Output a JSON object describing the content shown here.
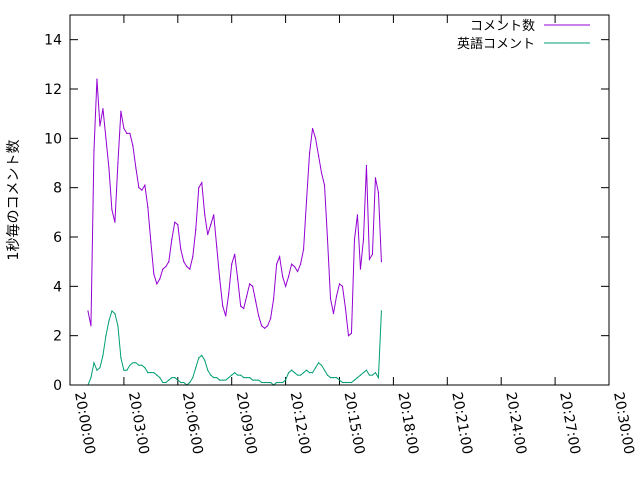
{
  "chart_data": {
    "type": "line",
    "title": "",
    "xlabel": "",
    "ylabel": "1秒毎のコメント数",
    "x_unit": "time (HH:MM:SS)",
    "xlim": [
      "20:00:00",
      "20:30:00"
    ],
    "ylim": [
      0,
      15
    ],
    "grid": false,
    "legend_position": "top-right",
    "x_ticks": [
      "20:00:00",
      "20:03:00",
      "20:06:00",
      "20:09:00",
      "20:12:00",
      "20:15:00",
      "20:18:00",
      "20:21:00",
      "20:24:00",
      "20:27:00",
      "20:30:00"
    ],
    "y_ticks": [
      "0",
      "2",
      "4",
      "6",
      "8",
      "10",
      "12",
      "14"
    ],
    "series": [
      {
        "name": "コメント数",
        "color": "#9400d3",
        "points": [
          [
            "20:01:00",
            3.0
          ],
          [
            "20:01:10",
            2.4
          ],
          [
            "20:01:20",
            9.5
          ],
          [
            "20:01:30",
            12.4
          ],
          [
            "20:01:40",
            10.5
          ],
          [
            "20:01:50",
            11.2
          ],
          [
            "20:02:00",
            10.0
          ],
          [
            "20:02:10",
            8.8
          ],
          [
            "20:02:20",
            7.1
          ],
          [
            "20:02:30",
            6.6
          ],
          [
            "20:02:40",
            9.0
          ],
          [
            "20:02:50",
            11.1
          ],
          [
            "20:03:00",
            10.4
          ],
          [
            "20:03:10",
            10.2
          ],
          [
            "20:03:20",
            10.2
          ],
          [
            "20:03:30",
            9.7
          ],
          [
            "20:03:40",
            8.8
          ],
          [
            "20:03:50",
            8.0
          ],
          [
            "20:04:00",
            7.9
          ],
          [
            "20:04:10",
            8.1
          ],
          [
            "20:04:20",
            7.2
          ],
          [
            "20:04:30",
            5.8
          ],
          [
            "20:04:40",
            4.5
          ],
          [
            "20:04:50",
            4.1
          ],
          [
            "20:05:00",
            4.3
          ],
          [
            "20:05:10",
            4.7
          ],
          [
            "20:05:20",
            4.8
          ],
          [
            "20:05:30",
            5.0
          ],
          [
            "20:05:40",
            5.9
          ],
          [
            "20:05:50",
            6.6
          ],
          [
            "20:06:00",
            6.5
          ],
          [
            "20:06:10",
            5.5
          ],
          [
            "20:06:20",
            5.0
          ],
          [
            "20:06:30",
            4.8
          ],
          [
            "20:06:40",
            4.7
          ],
          [
            "20:06:50",
            5.2
          ],
          [
            "20:07:00",
            6.3
          ],
          [
            "20:07:10",
            8.0
          ],
          [
            "20:07:20",
            8.2
          ],
          [
            "20:07:30",
            6.9
          ],
          [
            "20:07:40",
            6.1
          ],
          [
            "20:07:50",
            6.5
          ],
          [
            "20:08:00",
            6.9
          ],
          [
            "20:08:10",
            5.6
          ],
          [
            "20:08:20",
            4.3
          ],
          [
            "20:08:30",
            3.2
          ],
          [
            "20:08:40",
            2.8
          ],
          [
            "20:08:50",
            3.7
          ],
          [
            "20:09:00",
            4.9
          ],
          [
            "20:09:10",
            5.3
          ],
          [
            "20:09:20",
            4.3
          ],
          [
            "20:09:30",
            3.2
          ],
          [
            "20:09:40",
            3.1
          ],
          [
            "20:09:50",
            3.6
          ],
          [
            "20:10:00",
            4.1
          ],
          [
            "20:10:10",
            4.0
          ],
          [
            "20:10:20",
            3.4
          ],
          [
            "20:10:30",
            2.8
          ],
          [
            "20:10:40",
            2.4
          ],
          [
            "20:10:50",
            2.3
          ],
          [
            "20:11:00",
            2.4
          ],
          [
            "20:11:10",
            2.7
          ],
          [
            "20:11:20",
            3.5
          ],
          [
            "20:11:30",
            4.9
          ],
          [
            "20:11:40",
            5.2
          ],
          [
            "20:11:50",
            4.4
          ],
          [
            "20:12:00",
            4.0
          ],
          [
            "20:12:10",
            4.4
          ],
          [
            "20:12:20",
            4.9
          ],
          [
            "20:12:30",
            4.8
          ],
          [
            "20:12:40",
            4.6
          ],
          [
            "20:12:50",
            4.9
          ],
          [
            "20:13:00",
            5.5
          ],
          [
            "20:13:10",
            7.5
          ],
          [
            "20:13:20",
            9.4
          ],
          [
            "20:13:30",
            10.4
          ],
          [
            "20:13:40",
            10.0
          ],
          [
            "20:13:50",
            9.3
          ],
          [
            "20:14:00",
            8.6
          ],
          [
            "20:14:10",
            8.1
          ],
          [
            "20:14:20",
            5.9
          ],
          [
            "20:14:30",
            3.5
          ],
          [
            "20:14:40",
            2.9
          ],
          [
            "20:14:50",
            3.6
          ],
          [
            "20:15:00",
            4.1
          ],
          [
            "20:15:10",
            4.0
          ],
          [
            "20:15:20",
            3.1
          ],
          [
            "20:15:30",
            2.0
          ],
          [
            "20:15:40",
            2.1
          ],
          [
            "20:15:50",
            5.9
          ],
          [
            "20:16:00",
            6.9
          ],
          [
            "20:16:10",
            4.7
          ],
          [
            "20:16:20",
            5.9
          ],
          [
            "20:16:30",
            8.9
          ],
          [
            "20:16:40",
            5.1
          ],
          [
            "20:16:50",
            5.3
          ],
          [
            "20:17:00",
            8.4
          ],
          [
            "20:17:10",
            7.8
          ],
          [
            "20:17:20",
            5.0
          ]
        ]
      },
      {
        "name": "英語コメント",
        "color": "#009e73",
        "points": [
          [
            "20:01:00",
            0.0
          ],
          [
            "20:01:10",
            0.3
          ],
          [
            "20:01:20",
            0.9
          ],
          [
            "20:01:30",
            0.6
          ],
          [
            "20:01:40",
            0.7
          ],
          [
            "20:01:50",
            1.2
          ],
          [
            "20:02:00",
            2.0
          ],
          [
            "20:02:10",
            2.6
          ],
          [
            "20:02:20",
            3.0
          ],
          [
            "20:02:30",
            2.9
          ],
          [
            "20:02:40",
            2.4
          ],
          [
            "20:02:50",
            1.1
          ],
          [
            "20:03:00",
            0.6
          ],
          [
            "20:03:10",
            0.6
          ],
          [
            "20:03:20",
            0.8
          ],
          [
            "20:03:30",
            0.9
          ],
          [
            "20:03:40",
            0.9
          ],
          [
            "20:03:50",
            0.8
          ],
          [
            "20:04:00",
            0.8
          ],
          [
            "20:04:10",
            0.7
          ],
          [
            "20:04:20",
            0.5
          ],
          [
            "20:04:30",
            0.5
          ],
          [
            "20:04:40",
            0.5
          ],
          [
            "20:04:50",
            0.4
          ],
          [
            "20:05:00",
            0.3
          ],
          [
            "20:05:10",
            0.1
          ],
          [
            "20:05:20",
            0.1
          ],
          [
            "20:05:30",
            0.2
          ],
          [
            "20:05:40",
            0.3
          ],
          [
            "20:05:50",
            0.3
          ],
          [
            "20:06:00",
            0.2
          ],
          [
            "20:06:10",
            0.1
          ],
          [
            "20:06:20",
            0.1
          ],
          [
            "20:06:30",
            0.0
          ],
          [
            "20:06:40",
            0.1
          ],
          [
            "20:06:50",
            0.3
          ],
          [
            "20:07:00",
            0.7
          ],
          [
            "20:07:10",
            1.1
          ],
          [
            "20:07:20",
            1.2
          ],
          [
            "20:07:30",
            1.0
          ],
          [
            "20:07:40",
            0.6
          ],
          [
            "20:07:50",
            0.4
          ],
          [
            "20:08:00",
            0.3
          ],
          [
            "20:08:10",
            0.3
          ],
          [
            "20:08:20",
            0.2
          ],
          [
            "20:08:30",
            0.2
          ],
          [
            "20:08:40",
            0.2
          ],
          [
            "20:08:50",
            0.3
          ],
          [
            "20:09:00",
            0.4
          ],
          [
            "20:09:10",
            0.5
          ],
          [
            "20:09:20",
            0.4
          ],
          [
            "20:09:30",
            0.4
          ],
          [
            "20:09:40",
            0.3
          ],
          [
            "20:09:50",
            0.3
          ],
          [
            "20:10:00",
            0.3
          ],
          [
            "20:10:10",
            0.2
          ],
          [
            "20:10:20",
            0.2
          ],
          [
            "20:10:30",
            0.2
          ],
          [
            "20:10:40",
            0.1
          ],
          [
            "20:10:50",
            0.1
          ],
          [
            "20:11:00",
            0.1
          ],
          [
            "20:11:10",
            0.1
          ],
          [
            "20:11:20",
            0.0
          ],
          [
            "20:11:30",
            0.1
          ],
          [
            "20:11:40",
            0.1
          ],
          [
            "20:11:50",
            0.1
          ],
          [
            "20:12:00",
            0.2
          ],
          [
            "20:12:10",
            0.5
          ],
          [
            "20:12:20",
            0.6
          ],
          [
            "20:12:30",
            0.5
          ],
          [
            "20:12:40",
            0.4
          ],
          [
            "20:12:50",
            0.4
          ],
          [
            "20:13:00",
            0.5
          ],
          [
            "20:13:10",
            0.6
          ],
          [
            "20:13:20",
            0.5
          ],
          [
            "20:13:30",
            0.5
          ],
          [
            "20:13:40",
            0.7
          ],
          [
            "20:13:50",
            0.9
          ],
          [
            "20:14:00",
            0.8
          ],
          [
            "20:14:10",
            0.6
          ],
          [
            "20:14:20",
            0.4
          ],
          [
            "20:14:30",
            0.3
          ],
          [
            "20:14:40",
            0.3
          ],
          [
            "20:14:50",
            0.3
          ],
          [
            "20:15:00",
            0.2
          ],
          [
            "20:15:10",
            0.1
          ],
          [
            "20:15:20",
            0.1
          ],
          [
            "20:15:30",
            0.1
          ],
          [
            "20:15:40",
            0.1
          ],
          [
            "20:15:50",
            0.2
          ],
          [
            "20:16:00",
            0.3
          ],
          [
            "20:16:10",
            0.4
          ],
          [
            "20:16:20",
            0.5
          ],
          [
            "20:16:30",
            0.6
          ],
          [
            "20:16:40",
            0.4
          ],
          [
            "20:16:50",
            0.4
          ],
          [
            "20:17:00",
            0.5
          ],
          [
            "20:17:10",
            0.3
          ],
          [
            "20:17:20",
            3.0
          ]
        ]
      }
    ]
  }
}
